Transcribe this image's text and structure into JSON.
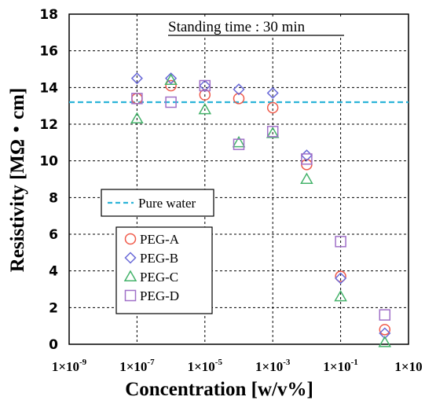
{
  "chart_data": {
    "type": "scatter",
    "title": "",
    "annotation": "Standing time : 30 min",
    "xlabel": "Concentration [w/v%]",
    "ylabel": "Resistivity [MΩ・cm]",
    "x_scale": "log",
    "xlim": [
      1e-09,
      10
    ],
    "ylim": [
      0,
      18
    ],
    "grid": true,
    "x_ticks": [
      {
        "value": 1e-09,
        "base": "1×10",
        "exp": "-9"
      },
      {
        "value": 1e-07,
        "base": "1×10",
        "exp": "-7"
      },
      {
        "value": 1e-05,
        "base": "1×10",
        "exp": "-5"
      },
      {
        "value": 0.001,
        "base": "1×10",
        "exp": "-3"
      },
      {
        "value": 0.1,
        "base": "1×10",
        "exp": "-1"
      },
      {
        "value": 10,
        "base": "1×10",
        "exp": ""
      }
    ],
    "y_ticks": [
      "0",
      "2",
      "4",
      "6",
      "8",
      "10",
      "12",
      "14",
      "16",
      "18"
    ],
    "reference_line": {
      "name": "Pure water",
      "y": 13.2,
      "color": "#2db4d8",
      "style": "dashed"
    },
    "legend_position": "center-left",
    "series": [
      {
        "name": "PEG-A",
        "marker": "circle",
        "color": "#f05a4a",
        "points": [
          {
            "x": 1e-07,
            "y": 13.4
          },
          {
            "x": 1e-06,
            "y": 14.1
          },
          {
            "x": 1e-05,
            "y": 13.6
          },
          {
            "x": 0.0001,
            "y": 13.4
          },
          {
            "x": 0.001,
            "y": 12.9
          },
          {
            "x": 0.01,
            "y": 9.8
          },
          {
            "x": 0.1,
            "y": 3.7
          },
          {
            "x": 2,
            "y": 0.8
          }
        ]
      },
      {
        "name": "PEG-B",
        "marker": "diamond",
        "color": "#6a6ad8",
        "points": [
          {
            "x": 1e-07,
            "y": 14.5
          },
          {
            "x": 1e-06,
            "y": 14.5
          },
          {
            "x": 1e-05,
            "y": 14.1
          },
          {
            "x": 0.0001,
            "y": 13.9
          },
          {
            "x": 0.001,
            "y": 13.7
          },
          {
            "x": 0.01,
            "y": 10.3
          },
          {
            "x": 0.1,
            "y": 3.6
          },
          {
            "x": 2,
            "y": 0.6
          }
        ]
      },
      {
        "name": "PEG-C",
        "marker": "triangle",
        "color": "#45b36b",
        "points": [
          {
            "x": 1e-07,
            "y": 12.3
          },
          {
            "x": 1e-06,
            "y": 14.4
          },
          {
            "x": 1e-05,
            "y": 12.8
          },
          {
            "x": 0.0001,
            "y": 11.0
          },
          {
            "x": 0.001,
            "y": 11.5
          },
          {
            "x": 0.01,
            "y": 9.0
          },
          {
            "x": 0.1,
            "y": 2.6
          },
          {
            "x": 2,
            "y": 0.1
          }
        ]
      },
      {
        "name": "PEG-D",
        "marker": "square",
        "color": "#a070c8",
        "points": [
          {
            "x": 1e-07,
            "y": 13.4
          },
          {
            "x": 1e-06,
            "y": 13.2
          },
          {
            "x": 1e-05,
            "y": 14.1
          },
          {
            "x": 0.0001,
            "y": 10.9
          },
          {
            "x": 0.001,
            "y": 11.6
          },
          {
            "x": 0.01,
            "y": 10.1
          },
          {
            "x": 0.1,
            "y": 5.6
          },
          {
            "x": 2,
            "y": 1.6
          }
        ]
      }
    ]
  }
}
